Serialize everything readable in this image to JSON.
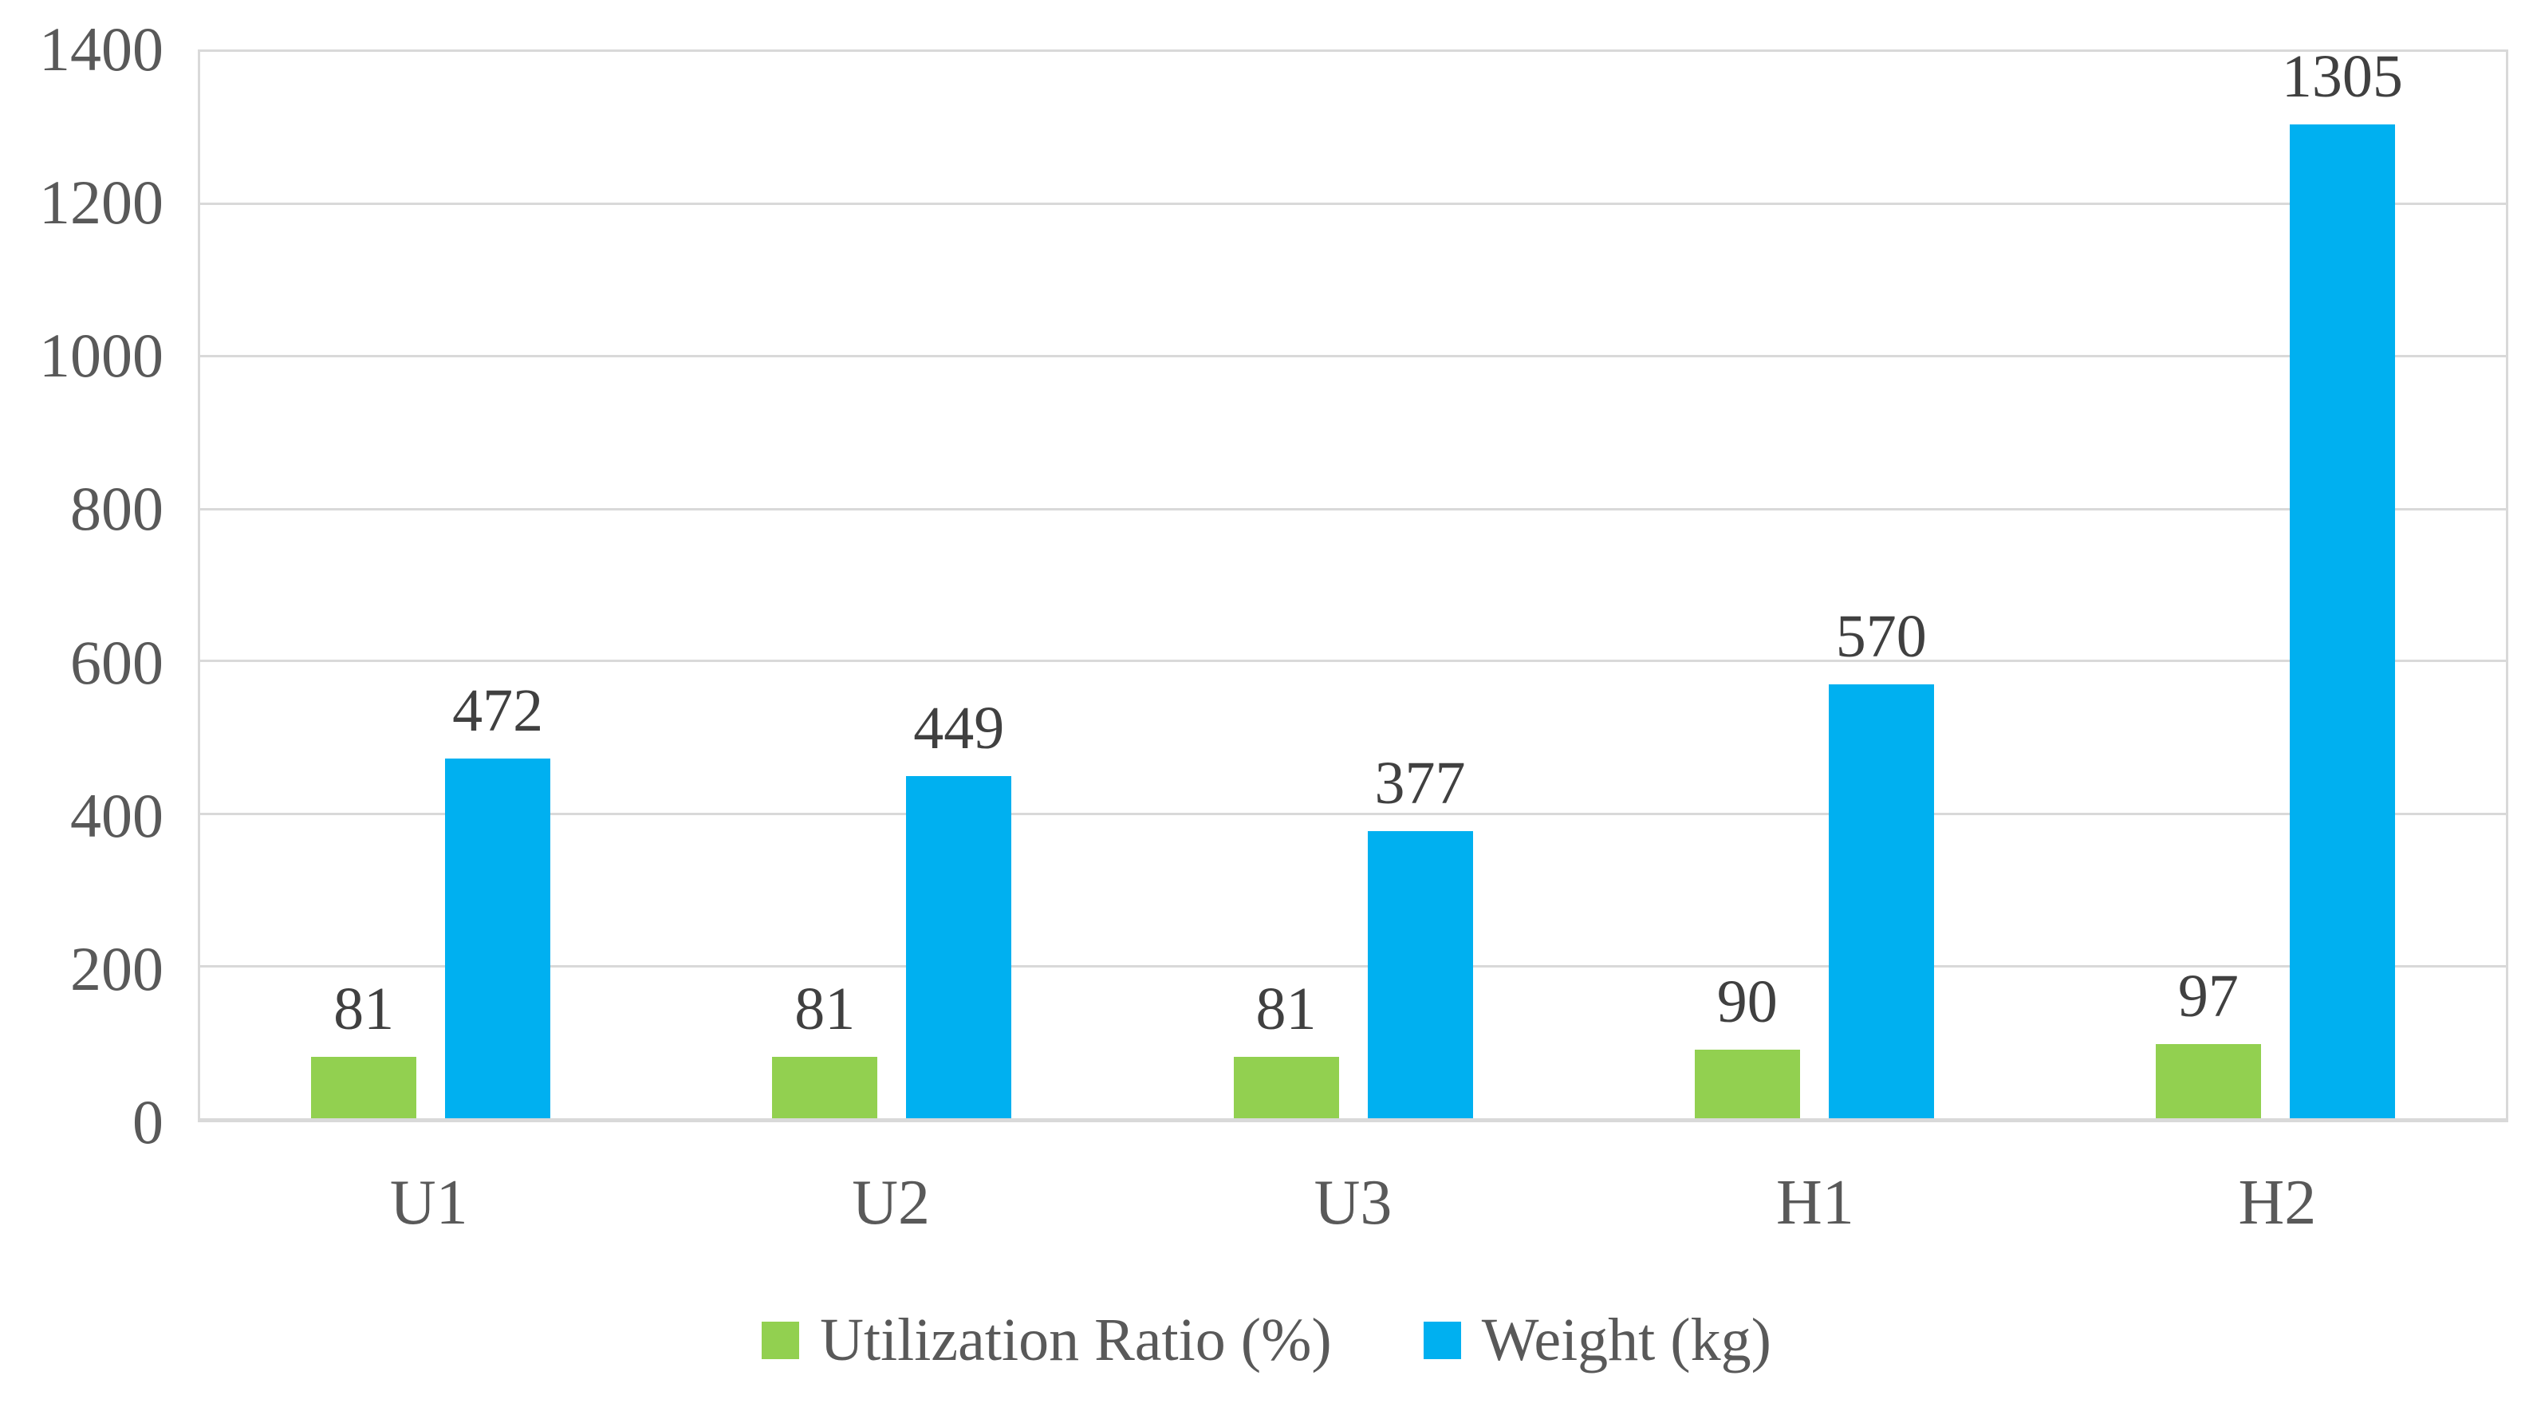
{
  "chart_data": {
    "type": "bar",
    "categories": [
      "U1",
      "U2",
      "U3",
      "H1",
      "H2"
    ],
    "series": [
      {
        "name": "Utilization Ratio (%)",
        "color": "#92D050",
        "values": [
          81,
          81,
          81,
          90,
          97
        ]
      },
      {
        "name": "Weight (kg)",
        "color": "#00B0F0",
        "values": [
          472,
          449,
          377,
          570,
          1305
        ]
      }
    ],
    "title": "",
    "xlabel": "",
    "ylabel": "",
    "ylim": [
      0,
      1400
    ],
    "yticks": [
      0,
      200,
      400,
      600,
      800,
      1000,
      1200,
      1400
    ],
    "grid": true,
    "data_labels": true,
    "legend_position": "bottom"
  },
  "colors": {
    "background": "#FFFFFF",
    "gridline": "#D9D9D9",
    "axis_line": "#D9D9D9",
    "tick_label": "#595959",
    "category_label": "#595959",
    "data_label": "#404040",
    "legend_text": "#595959"
  }
}
